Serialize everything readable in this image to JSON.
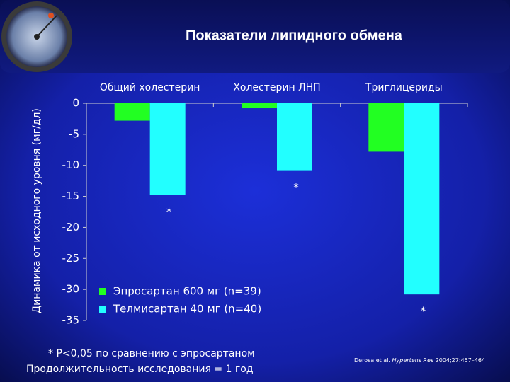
{
  "chart_data": {
    "type": "bar",
    "title": "Показатели липидного обмена",
    "y_label": "Динамика от исходного уровня (мг/дл)",
    "categories": [
      "Общий холестерин",
      "Холестерин ЛНП",
      "Триглицериды"
    ],
    "series": [
      {
        "name": "Эпросартан 600 мг (n=39)",
        "color": "#22ff22",
        "values": [
          -2.8,
          -0.8,
          -7.8
        ]
      },
      {
        "name": "Телмисартан 40 мг (n=40)",
        "color": "#22ffff",
        "values": [
          -14.8,
          -10.9,
          -30.8
        ],
        "significance": [
          "*",
          "*",
          "*"
        ]
      }
    ],
    "ylim": [
      -35,
      0
    ],
    "yticks": [
      0,
      -5,
      -10,
      -15,
      -20,
      -25,
      -30,
      -35
    ],
    "legend": "lower left",
    "footnotes": [
      "* P<0,05 по сравнению с эпросартаном",
      "Продолжительность исследования = 1 год"
    ],
    "citation": {
      "authors": "Derosa et al.",
      "journal": "Hypertens Res",
      "details": "2004;27:457–464"
    }
  }
}
